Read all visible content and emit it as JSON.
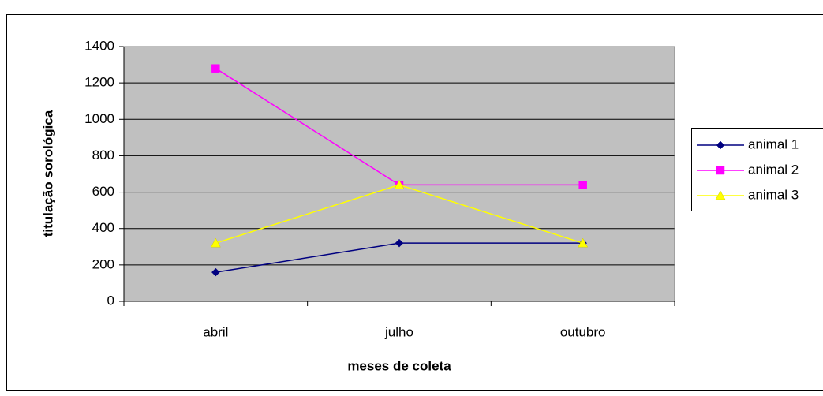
{
  "chart_data": {
    "type": "line",
    "x_label": "meses de coleta",
    "y_label": "titulação sorológica",
    "categories": [
      "abril",
      "julho",
      "outubro"
    ],
    "series": [
      {
        "name": "animal 1",
        "color": "#000080",
        "marker": "diamond",
        "values": [
          160,
          320,
          320
        ]
      },
      {
        "name": "animal 2",
        "color": "#ff00ff",
        "marker": "square",
        "values": [
          1280,
          640,
          640
        ]
      },
      {
        "name": "animal 3",
        "color": "#ffff00",
        "marker": "triangle",
        "values": [
          320,
          640,
          320
        ]
      }
    ],
    "ylim": [
      0,
      1400
    ],
    "yticks": [
      0,
      200,
      400,
      600,
      800,
      1000,
      1200,
      1400
    ],
    "grid": true,
    "legend": "right",
    "plot_background": "#c0c0c0"
  }
}
